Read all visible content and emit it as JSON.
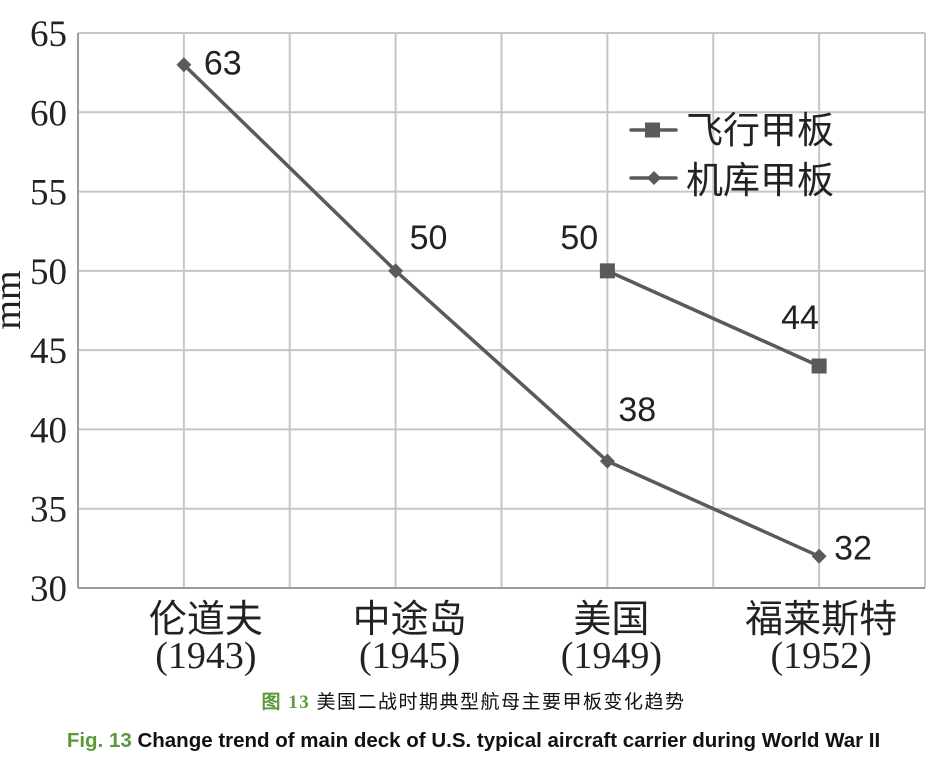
{
  "chart_data": {
    "type": "line",
    "categories": [
      {
        "label": "伦道夫",
        "year": "(1943)"
      },
      {
        "label": "中途岛",
        "year": "(1945)"
      },
      {
        "label": "美国",
        "year": "(1949)"
      },
      {
        "label": "福莱斯特",
        "year": "(1952)"
      }
    ],
    "series": [
      {
        "name": "飞行甲板",
        "marker": "square",
        "values": [
          null,
          null,
          50,
          44
        ]
      },
      {
        "name": "机库甲板",
        "marker": "diamond",
        "values": [
          63,
          50,
          38,
          32
        ]
      }
    ],
    "data_labels": true,
    "xlabel": "",
    "ylabel": "mm",
    "ylim": [
      30,
      65
    ],
    "yticks": [
      30,
      35,
      40,
      45,
      50,
      55,
      60,
      65
    ],
    "grid": true,
    "legend": "top-right",
    "colors": {
      "series": "#5a5a5a",
      "grid": "#c6c6c6",
      "axis": "#9a9a9a",
      "text": "#222222"
    }
  },
  "caption": {
    "cn_number": "图 13",
    "cn_text": "美国二战时期典型航母主要甲板变化趋势",
    "en_number": "Fig. 13",
    "en_text": "Change trend of main deck of U.S. typical aircraft carrier during World War II",
    "accent_color": "#5a9a3a"
  }
}
